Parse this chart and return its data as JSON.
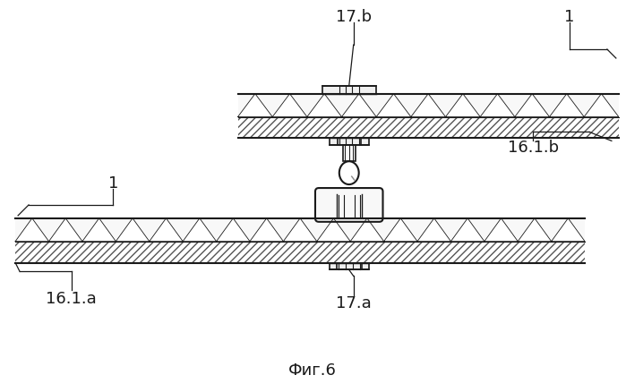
{
  "title": "Фиг.6",
  "bg_color": "#ffffff",
  "labels": {
    "17b": "17.b",
    "1_top": "1",
    "16_1b": "16.1.b",
    "1_bot": "1",
    "16_1a": "16.1.a",
    "17a": "17.a"
  },
  "line_color": "#1a1a1a"
}
